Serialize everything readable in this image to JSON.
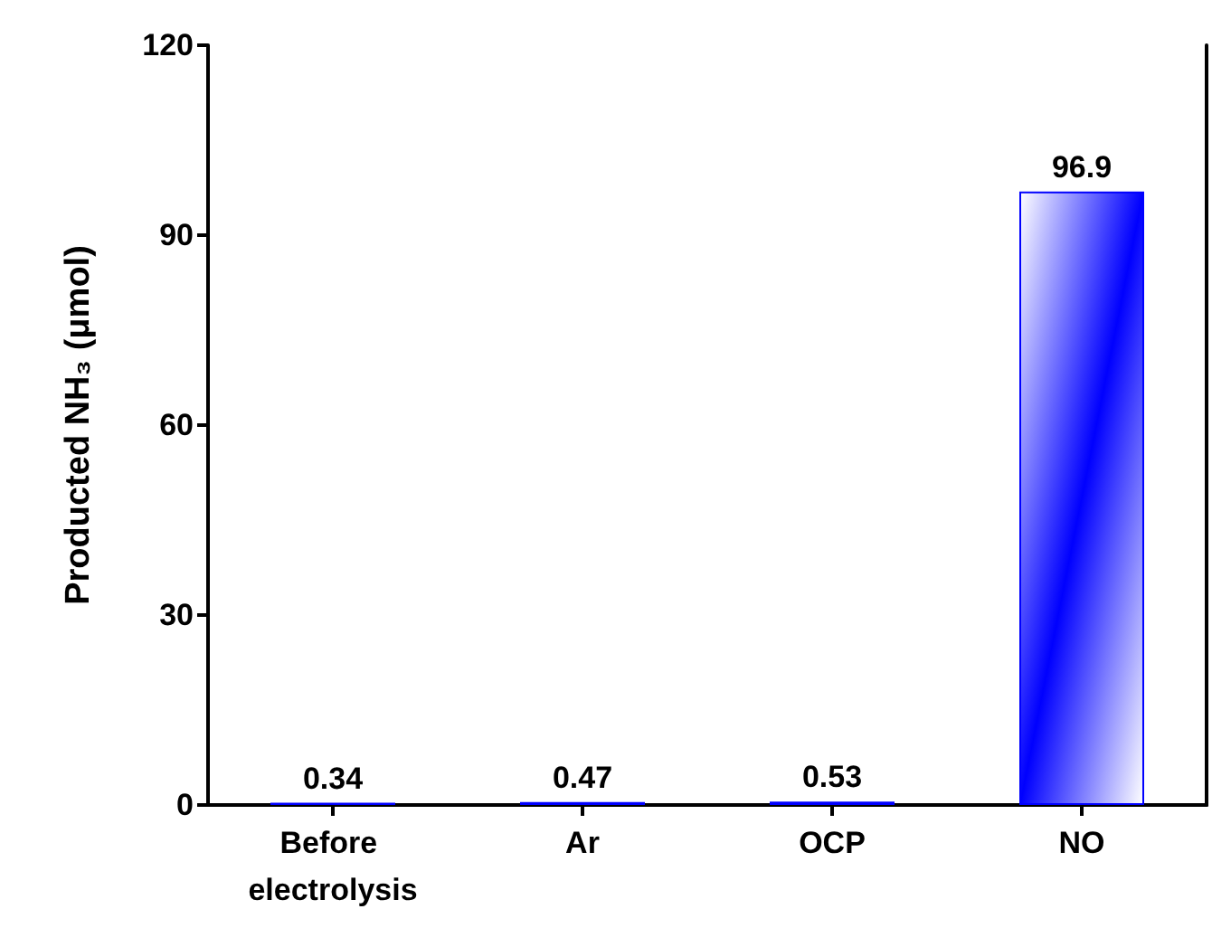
{
  "chart_data": {
    "type": "bar",
    "ylabel": "Producted NH₃ (μmol)",
    "categories": [
      "Before electrolysis",
      "Ar",
      "OCP",
      "NO"
    ],
    "values": [
      0.34,
      0.47,
      0.53,
      96.9
    ],
    "color": "#0000ff",
    "ylim": [
      0,
      120
    ],
    "yticks": [
      0,
      30,
      60,
      90,
      120
    ],
    "grid": false,
    "data_labels": true
  }
}
